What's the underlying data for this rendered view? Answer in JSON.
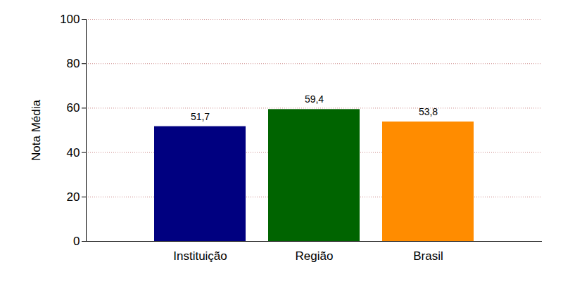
{
  "chart_data": {
    "type": "bar",
    "y_label": "Nota Média",
    "categories": [
      "Instituição",
      "Região",
      "Brasil"
    ],
    "values": [
      51.7,
      59.4,
      53.8
    ],
    "value_labels": [
      "51,7",
      "59,4",
      "53,8"
    ],
    "colors": [
      "#000080",
      "#006400",
      "#ff8c00"
    ],
    "ylim": [
      0,
      100
    ],
    "yticks": [
      0,
      20,
      40,
      60,
      80,
      100
    ],
    "grid": true,
    "data_labels": true
  }
}
